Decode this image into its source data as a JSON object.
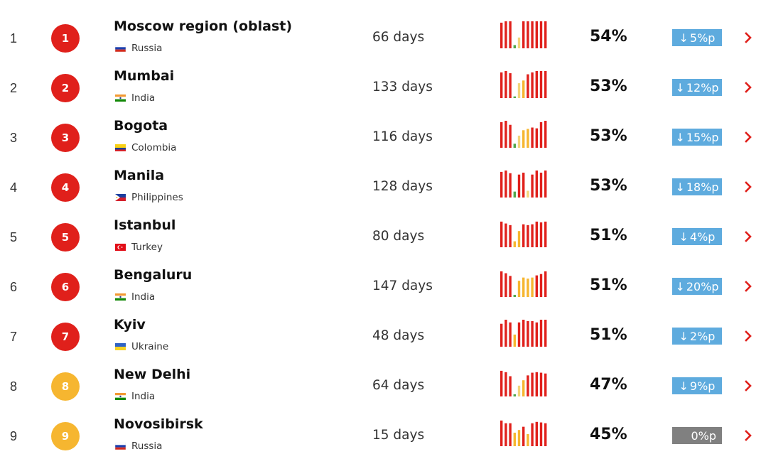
{
  "colors": {
    "red": "#e0201b",
    "yellow": "#f6b630",
    "green": "#52a64a",
    "pale_yellow": "#f3d57a",
    "change_down": "#5eabde",
    "change_flat": "#808080"
  },
  "rows": [
    {
      "rank": "1",
      "badge": "1",
      "badge_color": "red",
      "name": "Moscow region (oblast)",
      "country": "Russia",
      "flag": "russia-flag-icon",
      "days": "66 days",
      "percent": "54%",
      "change_dir": "down",
      "change": "5%p",
      "bars": [
        {
          "v": 0.95,
          "c": "red"
        },
        {
          "v": 1,
          "c": "red"
        },
        {
          "v": 1,
          "c": "red"
        },
        {
          "v": 0.12,
          "c": "green"
        },
        {
          "v": 0.4,
          "c": "pale_yellow"
        },
        {
          "v": 1,
          "c": "red"
        },
        {
          "v": 1,
          "c": "red"
        },
        {
          "v": 1,
          "c": "red"
        },
        {
          "v": 1,
          "c": "red"
        },
        {
          "v": 1,
          "c": "red"
        },
        {
          "v": 1,
          "c": "red"
        }
      ]
    },
    {
      "rank": "2",
      "badge": "2",
      "badge_color": "red",
      "name": "Mumbai",
      "country": "India",
      "flag": "india-flag-icon",
      "days": "133 days",
      "percent": "53%",
      "change_dir": "down",
      "change": "12%p",
      "bars": [
        {
          "v": 0.95,
          "c": "red"
        },
        {
          "v": 1,
          "c": "red"
        },
        {
          "v": 0.92,
          "c": "red"
        },
        {
          "v": 0.06,
          "c": "green"
        },
        {
          "v": 0.55,
          "c": "pale_yellow"
        },
        {
          "v": 0.65,
          "c": "yellow"
        },
        {
          "v": 0.88,
          "c": "red"
        },
        {
          "v": 0.95,
          "c": "red"
        },
        {
          "v": 1,
          "c": "red"
        },
        {
          "v": 1,
          "c": "red"
        },
        {
          "v": 1,
          "c": "red"
        }
      ]
    },
    {
      "rank": "3",
      "badge": "3",
      "badge_color": "red",
      "name": "Bogota",
      "country": "Colombia",
      "flag": "colombia-flag-icon",
      "days": "116 days",
      "percent": "53%",
      "change_dir": "down",
      "change": "15%p",
      "bars": [
        {
          "v": 0.95,
          "c": "red"
        },
        {
          "v": 1,
          "c": "red"
        },
        {
          "v": 0.85,
          "c": "red"
        },
        {
          "v": 0.15,
          "c": "green"
        },
        {
          "v": 0.45,
          "c": "pale_yellow"
        },
        {
          "v": 0.65,
          "c": "yellow"
        },
        {
          "v": 0.7,
          "c": "yellow"
        },
        {
          "v": 0.75,
          "c": "red"
        },
        {
          "v": 0.72,
          "c": "red"
        },
        {
          "v": 0.95,
          "c": "red"
        },
        {
          "v": 1,
          "c": "red"
        }
      ]
    },
    {
      "rank": "4",
      "badge": "4",
      "badge_color": "red",
      "name": "Manila",
      "country": "Philippines",
      "flag": "philippines-flag-icon",
      "days": "128 days",
      "percent": "53%",
      "change_dir": "down",
      "change": "18%p",
      "bars": [
        {
          "v": 0.95,
          "c": "red"
        },
        {
          "v": 1,
          "c": "red"
        },
        {
          "v": 0.9,
          "c": "red"
        },
        {
          "v": 0.22,
          "c": "green"
        },
        {
          "v": 0.85,
          "c": "red"
        },
        {
          "v": 0.92,
          "c": "red"
        },
        {
          "v": 0.25,
          "c": "pale_yellow"
        },
        {
          "v": 0.85,
          "c": "red"
        },
        {
          "v": 1,
          "c": "red"
        },
        {
          "v": 0.92,
          "c": "red"
        },
        {
          "v": 1,
          "c": "red"
        }
      ]
    },
    {
      "rank": "5",
      "badge": "5",
      "badge_color": "red",
      "name": "Istanbul",
      "country": "Turkey",
      "flag": "turkey-flag-icon",
      "days": "80 days",
      "percent": "51%",
      "change_dir": "down",
      "change": "4%p",
      "bars": [
        {
          "v": 0.95,
          "c": "red"
        },
        {
          "v": 0.88,
          "c": "red"
        },
        {
          "v": 0.82,
          "c": "red"
        },
        {
          "v": 0.22,
          "c": "yellow"
        },
        {
          "v": 0.6,
          "c": "yellow"
        },
        {
          "v": 0.85,
          "c": "red"
        },
        {
          "v": 0.82,
          "c": "red"
        },
        {
          "v": 0.85,
          "c": "red"
        },
        {
          "v": 0.95,
          "c": "red"
        },
        {
          "v": 0.92,
          "c": "red"
        },
        {
          "v": 0.95,
          "c": "red"
        }
      ]
    },
    {
      "rank": "6",
      "badge": "6",
      "badge_color": "red",
      "name": "Bengaluru",
      "country": "India",
      "flag": "india-flag-icon",
      "days": "147 days",
      "percent": "51%",
      "change_dir": "down",
      "change": "20%p",
      "bars": [
        {
          "v": 0.95,
          "c": "red"
        },
        {
          "v": 0.88,
          "c": "red"
        },
        {
          "v": 0.78,
          "c": "red"
        },
        {
          "v": 0.08,
          "c": "green"
        },
        {
          "v": 0.6,
          "c": "yellow"
        },
        {
          "v": 0.72,
          "c": "yellow"
        },
        {
          "v": 0.68,
          "c": "yellow"
        },
        {
          "v": 0.72,
          "c": "yellow"
        },
        {
          "v": 0.8,
          "c": "red"
        },
        {
          "v": 0.85,
          "c": "red"
        },
        {
          "v": 0.95,
          "c": "red"
        }
      ]
    },
    {
      "rank": "7",
      "badge": "7",
      "badge_color": "red",
      "name": "Kyiv",
      "country": "Ukraine",
      "flag": "ukraine-flag-icon",
      "days": "48 days",
      "percent": "51%",
      "change_dir": "down",
      "change": "2%p",
      "bars": [
        {
          "v": 0.85,
          "c": "red"
        },
        {
          "v": 1,
          "c": "red"
        },
        {
          "v": 0.9,
          "c": "red"
        },
        {
          "v": 0.45,
          "c": "yellow"
        },
        {
          "v": 0.9,
          "c": "red"
        },
        {
          "v": 1,
          "c": "red"
        },
        {
          "v": 0.95,
          "c": "red"
        },
        {
          "v": 0.95,
          "c": "red"
        },
        {
          "v": 0.9,
          "c": "red"
        },
        {
          "v": 1,
          "c": "red"
        },
        {
          "v": 1,
          "c": "red"
        }
      ]
    },
    {
      "rank": "8",
      "badge": "8",
      "badge_color": "yellow",
      "name": "New Delhi",
      "country": "India",
      "flag": "india-flag-icon",
      "days": "64 days",
      "percent": "47%",
      "change_dir": "down",
      "change": "9%p",
      "bars": [
        {
          "v": 0.95,
          "c": "red"
        },
        {
          "v": 0.9,
          "c": "red"
        },
        {
          "v": 0.75,
          "c": "red"
        },
        {
          "v": 0.08,
          "c": "green"
        },
        {
          "v": 0.4,
          "c": "pale_yellow"
        },
        {
          "v": 0.6,
          "c": "yellow"
        },
        {
          "v": 0.78,
          "c": "red"
        },
        {
          "v": 0.88,
          "c": "red"
        },
        {
          "v": 0.9,
          "c": "red"
        },
        {
          "v": 0.88,
          "c": "red"
        },
        {
          "v": 0.85,
          "c": "red"
        }
      ]
    },
    {
      "rank": "9",
      "badge": "9",
      "badge_color": "yellow",
      "name": "Novosibirsk",
      "country": "Russia",
      "flag": "russia-flag-icon",
      "days": "15 days",
      "percent": "45%",
      "change_dir": "flat",
      "change": "0%p",
      "bars": [
        {
          "v": 0.95,
          "c": "red"
        },
        {
          "v": 0.85,
          "c": "red"
        },
        {
          "v": 0.85,
          "c": "red"
        },
        {
          "v": 0.5,
          "c": "yellow"
        },
        {
          "v": 0.6,
          "c": "yellow"
        },
        {
          "v": 0.72,
          "c": "red"
        },
        {
          "v": 0.45,
          "c": "yellow"
        },
        {
          "v": 0.85,
          "c": "red"
        },
        {
          "v": 0.9,
          "c": "red"
        },
        {
          "v": 0.88,
          "c": "red"
        },
        {
          "v": 0.85,
          "c": "red"
        }
      ]
    }
  ]
}
